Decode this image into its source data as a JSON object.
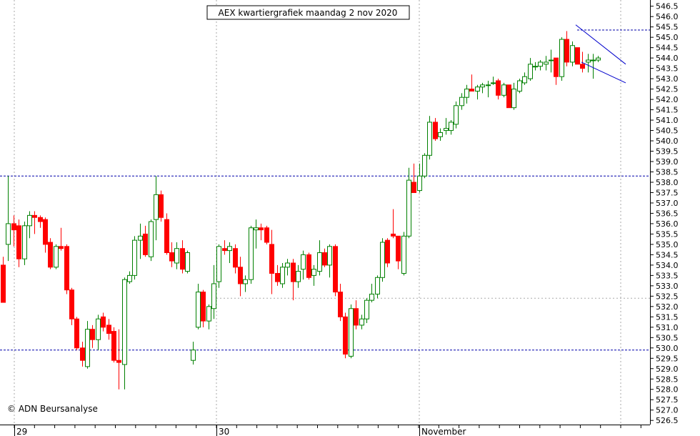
{
  "chart_data": {
    "type": "candlestick",
    "title": "AEX kwartiergrafiek maandag 2 nov 2020",
    "credit": "© ADN Beursanalyse",
    "x_labels": [
      "29",
      "30",
      "November"
    ],
    "ylim": [
      526.3,
      546.8
    ],
    "y_ticks": [
      "526.5",
      "527.0",
      "527.5",
      "528.0",
      "528.5",
      "529.0",
      "529.5",
      "530.0",
      "530.5",
      "531.0",
      "531.5",
      "532.0",
      "532.5",
      "533.0",
      "533.5",
      "534.0",
      "534.5",
      "535.0",
      "535.5",
      "536.0",
      "536.5",
      "537.0",
      "537.5",
      "538.0",
      "538.5",
      "539.0",
      "539.5",
      "540.0",
      "540.5",
      "541.0",
      "541.5",
      "542.0",
      "542.5",
      "543.0",
      "543.5",
      "544.0",
      "544.5",
      "545.0",
      "545.5",
      "546.0",
      "546.5"
    ],
    "horizontal_levels": [
      538.3,
      529.9,
      545.35
    ],
    "grid": true,
    "colors": {
      "up": "#008000",
      "down": "#ff0000",
      "level": "#0000aa",
      "channel": "#0000cc",
      "grid": "#aaaaaa"
    },
    "candles": [
      {
        "o": 534.0,
        "h": 534.4,
        "l": 532.2,
        "c": 532.2
      },
      {
        "o": 535.0,
        "h": 538.3,
        "l": 534.2,
        "c": 536.0
      },
      {
        "o": 536.0,
        "h": 536.4,
        "l": 534.9,
        "c": 535.7
      },
      {
        "o": 535.9,
        "h": 536.2,
        "l": 533.9,
        "c": 534.3
      },
      {
        "o": 534.3,
        "h": 536.1,
        "l": 534.0,
        "c": 535.9
      },
      {
        "o": 535.9,
        "h": 536.6,
        "l": 535.3,
        "c": 536.4
      },
      {
        "o": 536.4,
        "h": 536.6,
        "l": 535.5,
        "c": 536.3
      },
      {
        "o": 536.3,
        "h": 536.4,
        "l": 535.8,
        "c": 536.1
      },
      {
        "o": 536.2,
        "h": 536.3,
        "l": 534.6,
        "c": 535.0
      },
      {
        "o": 535.1,
        "h": 535.3,
        "l": 533.8,
        "c": 533.9
      },
      {
        "o": 533.9,
        "h": 535.0,
        "l": 533.8,
        "c": 534.9
      },
      {
        "o": 534.9,
        "h": 535.8,
        "l": 534.7,
        "c": 534.8
      },
      {
        "o": 534.9,
        "h": 535.0,
        "l": 532.6,
        "c": 532.8
      },
      {
        "o": 532.8,
        "h": 532.9,
        "l": 531.1,
        "c": 531.4
      },
      {
        "o": 531.4,
        "h": 531.5,
        "l": 529.9,
        "c": 530.0
      },
      {
        "o": 530.0,
        "h": 530.3,
        "l": 529.1,
        "c": 529.4
      },
      {
        "o": 529.1,
        "h": 531.3,
        "l": 529.0,
        "c": 530.9
      },
      {
        "o": 530.9,
        "h": 531.1,
        "l": 530.0,
        "c": 530.4
      },
      {
        "o": 530.4,
        "h": 531.6,
        "l": 529.9,
        "c": 531.4
      },
      {
        "o": 531.5,
        "h": 531.7,
        "l": 530.8,
        "c": 531.0
      },
      {
        "o": 531.1,
        "h": 531.4,
        "l": 530.4,
        "c": 530.7
      },
      {
        "o": 530.8,
        "h": 531.0,
        "l": 529.3,
        "c": 529.4
      },
      {
        "o": 529.4,
        "h": 530.9,
        "l": 528.0,
        "c": 529.3
      },
      {
        "o": 529.2,
        "h": 533.4,
        "l": 528.0,
        "c": 533.3
      },
      {
        "o": 533.2,
        "h": 533.7,
        "l": 533.1,
        "c": 533.5
      },
      {
        "o": 533.5,
        "h": 535.4,
        "l": 533.3,
        "c": 535.2
      },
      {
        "o": 535.2,
        "h": 536.0,
        "l": 534.3,
        "c": 535.4
      },
      {
        "o": 535.5,
        "h": 535.9,
        "l": 534.4,
        "c": 534.5
      },
      {
        "o": 534.4,
        "h": 536.2,
        "l": 534.2,
        "c": 536.1
      },
      {
        "o": 536.2,
        "h": 538.3,
        "l": 535.2,
        "c": 537.4
      },
      {
        "o": 537.4,
        "h": 537.6,
        "l": 536.1,
        "c": 536.3
      },
      {
        "o": 536.2,
        "h": 536.5,
        "l": 534.5,
        "c": 534.6
      },
      {
        "o": 534.6,
        "h": 535.1,
        "l": 533.9,
        "c": 534.2
      },
      {
        "o": 534.1,
        "h": 535.1,
        "l": 533.8,
        "c": 534.8
      },
      {
        "o": 534.8,
        "h": 535.2,
        "l": 533.6,
        "c": 533.8
      },
      {
        "o": 533.7,
        "h": 534.7,
        "l": 533.6,
        "c": 534.6
      },
      {
        "o": 529.4,
        "h": 530.3,
        "l": 529.2,
        "c": 529.9
      },
      {
        "o": 531.0,
        "h": 533.1,
        "l": 530.9,
        "c": 532.7
      },
      {
        "o": 532.7,
        "h": 532.8,
        "l": 531.0,
        "c": 531.3
      },
      {
        "o": 531.3,
        "h": 532.1,
        "l": 530.9,
        "c": 532.0
      },
      {
        "o": 531.9,
        "h": 534.0,
        "l": 531.4,
        "c": 533.1
      },
      {
        "o": 533.2,
        "h": 535.0,
        "l": 532.9,
        "c": 534.9
      },
      {
        "o": 534.8,
        "h": 535.2,
        "l": 534.5,
        "c": 534.7
      },
      {
        "o": 534.7,
        "h": 535.1,
        "l": 534.1,
        "c": 534.9
      },
      {
        "o": 534.8,
        "h": 535.0,
        "l": 533.6,
        "c": 533.9
      },
      {
        "o": 533.9,
        "h": 534.4,
        "l": 532.5,
        "c": 533.1
      },
      {
        "o": 533.1,
        "h": 533.5,
        "l": 532.7,
        "c": 533.3
      },
      {
        "o": 533.3,
        "h": 535.9,
        "l": 533.1,
        "c": 535.8
      },
      {
        "o": 535.7,
        "h": 536.2,
        "l": 534.8,
        "c": 535.8
      },
      {
        "o": 535.8,
        "h": 536.0,
        "l": 535.2,
        "c": 535.7
      },
      {
        "o": 535.8,
        "h": 535.9,
        "l": 535.0,
        "c": 535.1
      },
      {
        "o": 535.0,
        "h": 535.7,
        "l": 532.6,
        "c": 533.6
      },
      {
        "o": 533.6,
        "h": 534.0,
        "l": 533.0,
        "c": 533.2
      },
      {
        "o": 533.1,
        "h": 534.1,
        "l": 532.9,
        "c": 533.9
      },
      {
        "o": 533.9,
        "h": 534.3,
        "l": 533.5,
        "c": 534.1
      },
      {
        "o": 534.1,
        "h": 534.3,
        "l": 532.3,
        "c": 533.2
      },
      {
        "o": 533.2,
        "h": 534.0,
        "l": 532.9,
        "c": 533.7
      },
      {
        "o": 533.8,
        "h": 534.7,
        "l": 533.3,
        "c": 534.5
      },
      {
        "o": 534.5,
        "h": 534.6,
        "l": 533.3,
        "c": 533.4
      },
      {
        "o": 533.5,
        "h": 534.0,
        "l": 533.0,
        "c": 533.8
      },
      {
        "o": 533.7,
        "h": 535.2,
        "l": 533.5,
        "c": 534.6
      },
      {
        "o": 534.6,
        "h": 534.8,
        "l": 533.9,
        "c": 534.0
      },
      {
        "o": 534.0,
        "h": 535.0,
        "l": 533.4,
        "c": 534.9
      },
      {
        "o": 534.9,
        "h": 535.0,
        "l": 532.5,
        "c": 532.7
      },
      {
        "o": 532.7,
        "h": 533.1,
        "l": 531.3,
        "c": 531.5
      },
      {
        "o": 531.5,
        "h": 531.7,
        "l": 529.5,
        "c": 529.7
      },
      {
        "o": 529.6,
        "h": 532.1,
        "l": 529.5,
        "c": 531.9
      },
      {
        "o": 531.9,
        "h": 532.3,
        "l": 530.9,
        "c": 531.1
      },
      {
        "o": 531.1,
        "h": 531.6,
        "l": 530.9,
        "c": 531.4
      },
      {
        "o": 531.4,
        "h": 532.4,
        "l": 531.2,
        "c": 532.3
      },
      {
        "o": 532.3,
        "h": 533.1,
        "l": 532.2,
        "c": 532.6
      },
      {
        "o": 532.6,
        "h": 533.5,
        "l": 532.4,
        "c": 533.4
      },
      {
        "o": 533.4,
        "h": 535.3,
        "l": 533.2,
        "c": 535.1
      },
      {
        "o": 535.2,
        "h": 535.3,
        "l": 533.9,
        "c": 534.1
      },
      {
        "o": 535.5,
        "h": 536.7,
        "l": 535.3,
        "c": 535.4
      },
      {
        "o": 535.4,
        "h": 535.4,
        "l": 533.8,
        "c": 534.2
      },
      {
        "o": 533.6,
        "h": 535.6,
        "l": 533.5,
        "c": 535.4
      },
      {
        "o": 535.4,
        "h": 538.7,
        "l": 535.3,
        "c": 538.1
      },
      {
        "o": 538.0,
        "h": 538.9,
        "l": 537.5,
        "c": 537.5
      },
      {
        "o": 537.6,
        "h": 538.9,
        "l": 537.5,
        "c": 538.3
      },
      {
        "o": 538.3,
        "h": 539.4,
        "l": 538.2,
        "c": 539.3
      },
      {
        "o": 539.3,
        "h": 541.2,
        "l": 539.1,
        "c": 540.9
      },
      {
        "o": 540.9,
        "h": 541.1,
        "l": 540.0,
        "c": 540.1
      },
      {
        "o": 540.2,
        "h": 540.6,
        "l": 540.0,
        "c": 540.4
      },
      {
        "o": 540.5,
        "h": 541.1,
        "l": 540.3,
        "c": 540.6
      },
      {
        "o": 540.5,
        "h": 541.0,
        "l": 540.3,
        "c": 540.9
      },
      {
        "o": 540.8,
        "h": 541.9,
        "l": 540.6,
        "c": 541.7
      },
      {
        "o": 541.7,
        "h": 542.3,
        "l": 541.5,
        "c": 542.1
      },
      {
        "o": 542.1,
        "h": 542.7,
        "l": 541.8,
        "c": 542.5
      },
      {
        "o": 542.5,
        "h": 543.2,
        "l": 542.4,
        "c": 542.4
      },
      {
        "o": 542.4,
        "h": 542.7,
        "l": 542.0,
        "c": 542.6
      },
      {
        "o": 542.6,
        "h": 542.8,
        "l": 542.3,
        "c": 542.7
      },
      {
        "o": 542.7,
        "h": 542.9,
        "l": 542.1,
        "c": 542.7
      },
      {
        "o": 542.8,
        "h": 543.1,
        "l": 542.7,
        "c": 542.8
      },
      {
        "o": 542.9,
        "h": 543.0,
        "l": 542.0,
        "c": 542.2
      },
      {
        "o": 542.2,
        "h": 542.8,
        "l": 542.1,
        "c": 542.7
      },
      {
        "o": 542.7,
        "h": 542.7,
        "l": 541.6,
        "c": 541.6
      },
      {
        "o": 541.6,
        "h": 542.8,
        "l": 541.5,
        "c": 542.5
      },
      {
        "o": 542.4,
        "h": 543.0,
        "l": 542.3,
        "c": 542.9
      },
      {
        "o": 542.8,
        "h": 543.3,
        "l": 542.7,
        "c": 543.1
      },
      {
        "o": 543.0,
        "h": 544.0,
        "l": 542.9,
        "c": 543.7
      },
      {
        "o": 543.6,
        "h": 543.8,
        "l": 543.4,
        "c": 543.6
      },
      {
        "o": 543.6,
        "h": 543.9,
        "l": 543.4,
        "c": 543.8
      },
      {
        "o": 543.7,
        "h": 544.1,
        "l": 543.4,
        "c": 543.8
      },
      {
        "o": 543.9,
        "h": 544.4,
        "l": 543.3,
        "c": 543.9
      },
      {
        "o": 544.0,
        "h": 544.0,
        "l": 542.7,
        "c": 543.1
      },
      {
        "o": 543.1,
        "h": 545.0,
        "l": 542.9,
        "c": 544.9
      },
      {
        "o": 544.9,
        "h": 545.3,
        "l": 543.6,
        "c": 543.8
      },
      {
        "o": 543.8,
        "h": 544.8,
        "l": 543.6,
        "c": 544.6
      },
      {
        "o": 544.5,
        "h": 544.5,
        "l": 543.7,
        "c": 543.7
      },
      {
        "o": 543.7,
        "h": 544.3,
        "l": 543.3,
        "c": 543.5
      },
      {
        "o": 543.8,
        "h": 544.2,
        "l": 543.3,
        "c": 543.9
      },
      {
        "o": 543.9,
        "h": 544.2,
        "l": 543.0,
        "c": 543.9
      },
      {
        "o": 543.9,
        "h": 544.1,
        "l": 543.8,
        "c": 544.0
      }
    ]
  }
}
